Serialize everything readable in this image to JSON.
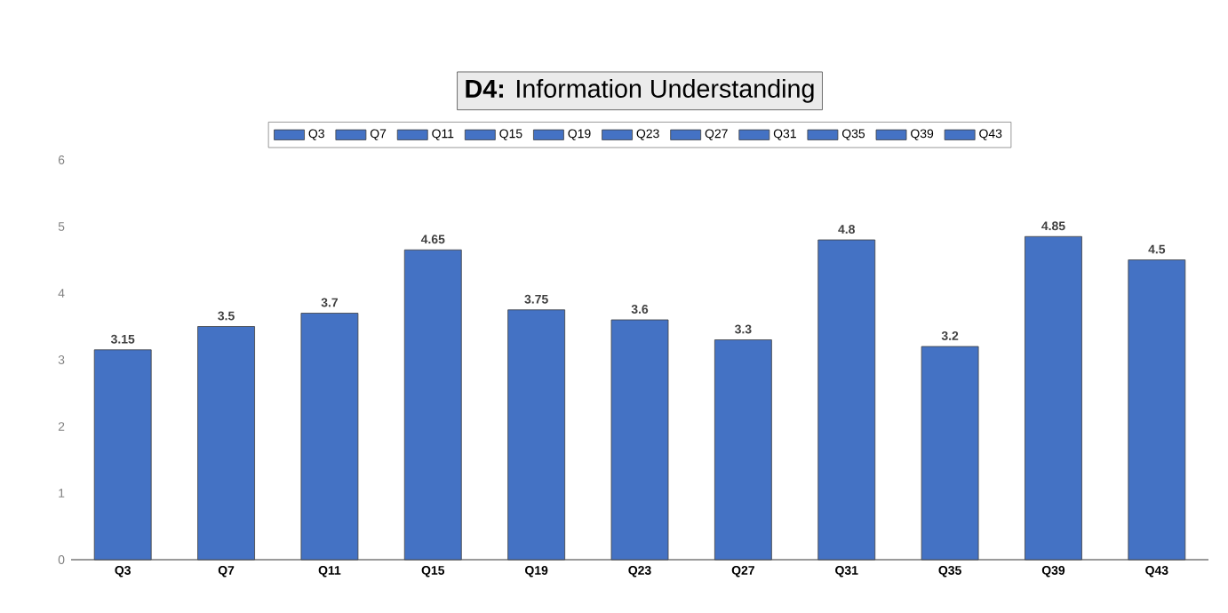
{
  "chart_data": {
    "type": "bar",
    "title": "**D4:** Information Understanding",
    "categories": [
      "Q3",
      "Q7",
      "Q11",
      "Q15",
      "Q19",
      "Q23",
      "Q27",
      "Q31",
      "Q35",
      "Q39",
      "Q43"
    ],
    "series": [
      {
        "name": "Q3",
        "color": "#4472c4",
        "values": [
          3.15,
          null,
          null,
          null,
          null,
          null,
          null,
          null,
          null,
          null,
          null
        ]
      },
      {
        "name": "Q7",
        "color": "#4472c4",
        "values": [
          null,
          3.5,
          null,
          null,
          null,
          null,
          null,
          null,
          null,
          null,
          null
        ]
      },
      {
        "name": "Q11",
        "color": "#4472c4",
        "values": [
          null,
          null,
          3.7,
          null,
          null,
          null,
          null,
          null,
          null,
          null,
          null
        ]
      },
      {
        "name": "Q15",
        "color": "#4472c4",
        "values": [
          null,
          null,
          null,
          4.65,
          null,
          null,
          null,
          null,
          null,
          null,
          null
        ]
      },
      {
        "name": "Q19",
        "color": "#4472c4",
        "values": [
          null,
          null,
          null,
          null,
          3.75,
          null,
          null,
          null,
          null,
          null,
          null
        ]
      },
      {
        "name": "Q23",
        "color": "#4472c4",
        "values": [
          null,
          null,
          null,
          null,
          null,
          3.6,
          null,
          null,
          null,
          null,
          null
        ]
      },
      {
        "name": "Q27",
        "color": "#4472c4",
        "values": [
          null,
          null,
          null,
          null,
          null,
          null,
          3.3,
          null,
          null,
          null,
          null
        ]
      },
      {
        "name": "Q31",
        "color": "#4472c4",
        "values": [
          null,
          null,
          null,
          null,
          null,
          null,
          null,
          4.8,
          null,
          null,
          null
        ]
      },
      {
        "name": "Q35",
        "color": "#4472c4",
        "values": [
          null,
          null,
          null,
          null,
          null,
          null,
          null,
          null,
          3.2,
          null,
          null
        ]
      },
      {
        "name": "Q39",
        "color": "#4472c4",
        "values": [
          null,
          null,
          null,
          null,
          null,
          null,
          null,
          null,
          null,
          4.85,
          null
        ]
      },
      {
        "name": "Q43",
        "color": "#4472c4",
        "values": [
          null,
          null,
          null,
          null,
          null,
          null,
          null,
          null,
          null,
          null,
          4.5
        ]
      }
    ],
    "ylim": [
      0,
      6
    ],
    "yticks": [
      0,
      1,
      2,
      3,
      4,
      5,
      6
    ],
    "legend": "top",
    "data_labels": true
  }
}
